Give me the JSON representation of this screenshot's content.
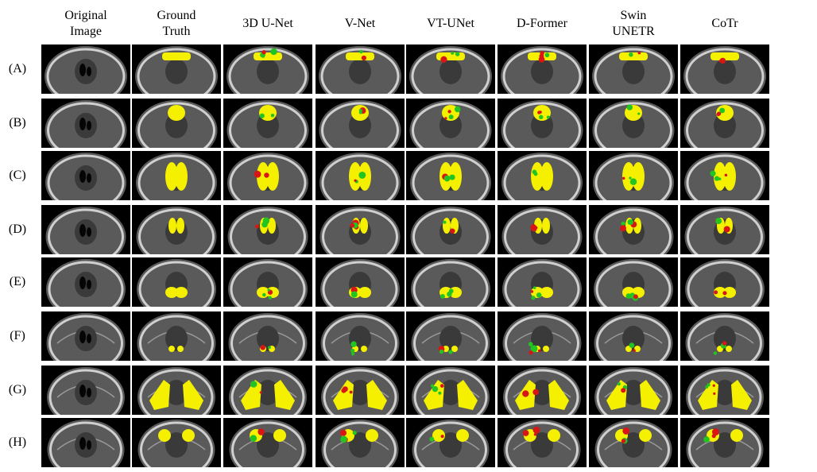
{
  "columns": [
    "Original\nImage",
    "Ground\nTruth",
    "3D U-Net",
    "V-Net",
    "VT-UNet",
    "D-Former",
    "Swin\nUNETR",
    "CoTr"
  ],
  "rows": [
    "(A)",
    "(B)",
    "(C)",
    "(D)",
    "(E)",
    "(F)",
    "(G)",
    "(H)"
  ],
  "colors": {
    "background": "#000000",
    "bone": "#cfcfcf",
    "tissue": "#5a5a5a",
    "segmentation_overlap": "#f4f000",
    "segmentation_false_positive": "#22c422",
    "segmentation_false_negative": "#d81616"
  }
}
